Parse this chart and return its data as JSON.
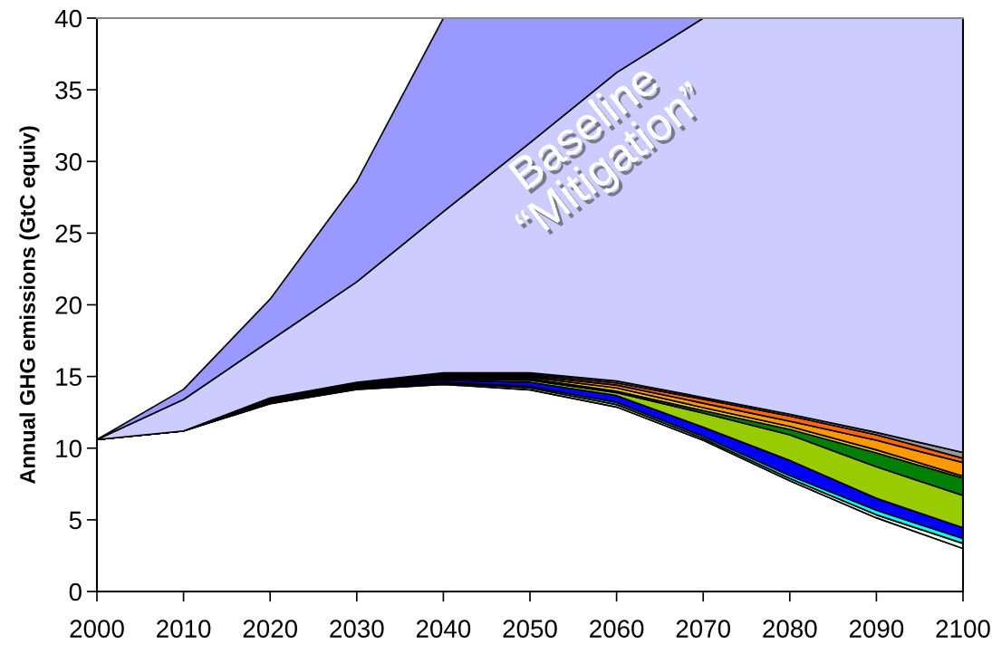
{
  "chart_data": {
    "type": "area",
    "stacked": true,
    "ylabel": "Annual GHG emissions (GtC equiv)",
    "x": [
      2000,
      2010,
      2020,
      2030,
      2040,
      2050,
      2060,
      2070,
      2080,
      2090,
      2100
    ],
    "series": [
      {
        "color": "#ffffff",
        "values": [
          10.6,
          11.2,
          13.1,
          14.1,
          14.45,
          14.07,
          12.87,
          10.55,
          7.73,
          5.14,
          3.0
        ]
      },
      {
        "color": "#e6ffe6",
        "values": [
          0,
          0,
          0.05,
          0.05,
          0.1,
          0.13,
          0.17,
          0.13,
          0.15,
          0.21,
          0.35
        ]
      },
      {
        "color": "#00ffff",
        "values": [
          0,
          0,
          0.05,
          0.05,
          0.05,
          0.1,
          0.16,
          0.14,
          0.21,
          0.32,
          0.35
        ]
      },
      {
        "color": "#0000ff",
        "values": [
          0,
          0,
          0.05,
          0.1,
          0.15,
          0.3,
          0.47,
          0.64,
          1.05,
          0.83,
          0.75
        ]
      },
      {
        "color": "#99cc00",
        "values": [
          0,
          0,
          0.05,
          0.05,
          0.1,
          0.15,
          0.21,
          0.99,
          1.79,
          2.2,
          2.25
        ]
      },
      {
        "color": "#008000",
        "values": [
          0,
          0,
          0.03,
          0.05,
          0.05,
          0.1,
          0.1,
          0.17,
          0.38,
          0.97,
          1.2
        ]
      },
      {
        "color": "#ffcc00",
        "values": [
          0,
          0,
          0.04,
          0.05,
          0.1,
          0.1,
          0.22,
          0.21,
          0.21,
          0.21,
          0.15
        ]
      },
      {
        "color": "#ff9900",
        "values": [
          0,
          0,
          0.03,
          0.05,
          0.05,
          0.1,
          0.2,
          0.31,
          0.36,
          0.67,
          0.95
        ]
      },
      {
        "color": "#ff6600",
        "values": [
          0,
          0,
          0.05,
          0.05,
          0.1,
          0.1,
          0.15,
          0.28,
          0.36,
          0.38,
          0.3
        ]
      },
      {
        "color": "#999999",
        "values": [
          0,
          0,
          0.05,
          0.05,
          0.1,
          0.1,
          0.13,
          0.12,
          0.13,
          0.17,
          0.4
        ]
      },
      {
        "color": "#ccccff",
        "values": [
          0,
          2.2,
          4.0,
          7.0,
          11.25,
          16.05,
          21.52,
          26.46,
          27.63,
          28.9,
          30.3
        ]
      },
      {
        "color": "#9999ff",
        "values": [
          0,
          0.7,
          2.9,
          7.0,
          13.5,
          8.7,
          3.8,
          0,
          0,
          0,
          0
        ]
      }
    ],
    "xlim": [
      2000,
      2100
    ],
    "xticks": [
      2000,
      2010,
      2020,
      2030,
      2040,
      2050,
      2060,
      2070,
      2080,
      2090,
      2100
    ],
    "ylim": [
      0,
      40
    ],
    "yticks": [
      0,
      5,
      10,
      15,
      20,
      25,
      30,
      35,
      40
    ],
    "annotations": [
      "Baseline\n“Mitigation”"
    ]
  }
}
